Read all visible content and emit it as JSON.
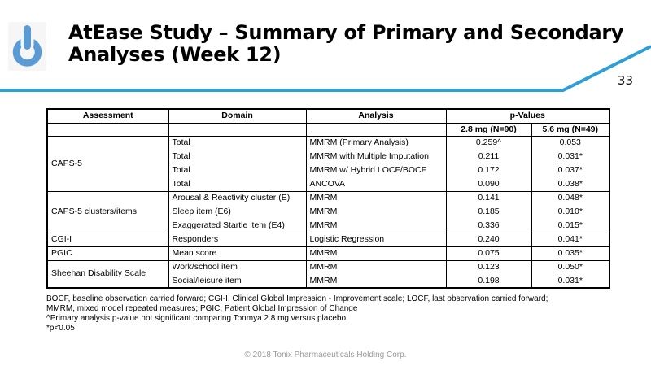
{
  "header": {
    "logo_icon": "power-button-icon",
    "title_line1": "AtEase Study – Summary of Primary and Secondary",
    "title_line2": "Analyses (Week 12)",
    "page_number": "33"
  },
  "table": {
    "headers": {
      "assessment": "Assessment",
      "domain": "Domain",
      "analysis": "Analysis",
      "p_values": "p-Values",
      "dose_28": "2.8 mg (N=90)",
      "dose_56": "5.6 mg (N=49)"
    },
    "groups": [
      {
        "assessment": "CAPS-5",
        "rows": [
          {
            "domain": "Total",
            "analysis": "MMRM (Primary Analysis)",
            "p_28": "0.259^",
            "p_56": "0.053"
          },
          {
            "domain": "Total",
            "analysis": "MMRM with Multiple Imputation",
            "p_28": "0.211",
            "p_56": "0.031*"
          },
          {
            "domain": "Total",
            "analysis": "MMRM w/ Hybrid LOCF/BOCF",
            "p_28": "0.172",
            "p_56": "0.037*"
          },
          {
            "domain": "Total",
            "analysis": "ANCOVA",
            "p_28": "0.090",
            "p_56": "0.038*"
          }
        ]
      },
      {
        "assessment": "CAPS-5 clusters/items",
        "rows": [
          {
            "domain": "Arousal & Reactivity cluster (E)",
            "analysis": "MMRM",
            "p_28": "0.141",
            "p_56": "0.048*"
          },
          {
            "domain": "Sleep item (E6)",
            "analysis": "MMRM",
            "p_28": "0.185",
            "p_56": "0.010*"
          },
          {
            "domain": "Exaggerated Startle item (E4)",
            "analysis": "MMRM",
            "p_28": "0.336",
            "p_56": "0.015*"
          }
        ]
      },
      {
        "assessment": "CGI-I",
        "rows": [
          {
            "domain": "Responders",
            "analysis": "Logistic Regression",
            "p_28": "0.240",
            "p_56": "0.041*"
          }
        ]
      },
      {
        "assessment": "PGIC",
        "rows": [
          {
            "domain": "Mean score",
            "analysis": "MMRM",
            "p_28": "0.075",
            "p_56": "0.035*"
          }
        ]
      },
      {
        "assessment": "Sheehan Disability Scale",
        "rows": [
          {
            "domain": "Work/school item",
            "analysis": "MMRM",
            "p_28": "0.123",
            "p_56": "0.050*"
          },
          {
            "domain": "Social/leisure item",
            "analysis": "MMRM",
            "p_28": "0.198",
            "p_56": "0.031*"
          }
        ]
      }
    ]
  },
  "footnotes": [
    "BOCF, baseline observation carried forward; CGI-I, Clinical Global Impression - Improvement scale; LOCF, last observation carried forward;",
    "MMRM, mixed model repeated measures; PGIC, Patient Global Impression of Change",
    "^Primary analysis p-value not significant comparing Tonmya 2.8 mg versus placebo",
    "*p<0.05"
  ],
  "footer": {
    "copyright": "© 2018 Tonix Pharmaceuticals Holding Corp."
  },
  "colors": {
    "accent_blue": "#2E9FD6",
    "logo_blue": "#5B9BD5",
    "border": "#000000",
    "footer_gray": "#999999"
  }
}
